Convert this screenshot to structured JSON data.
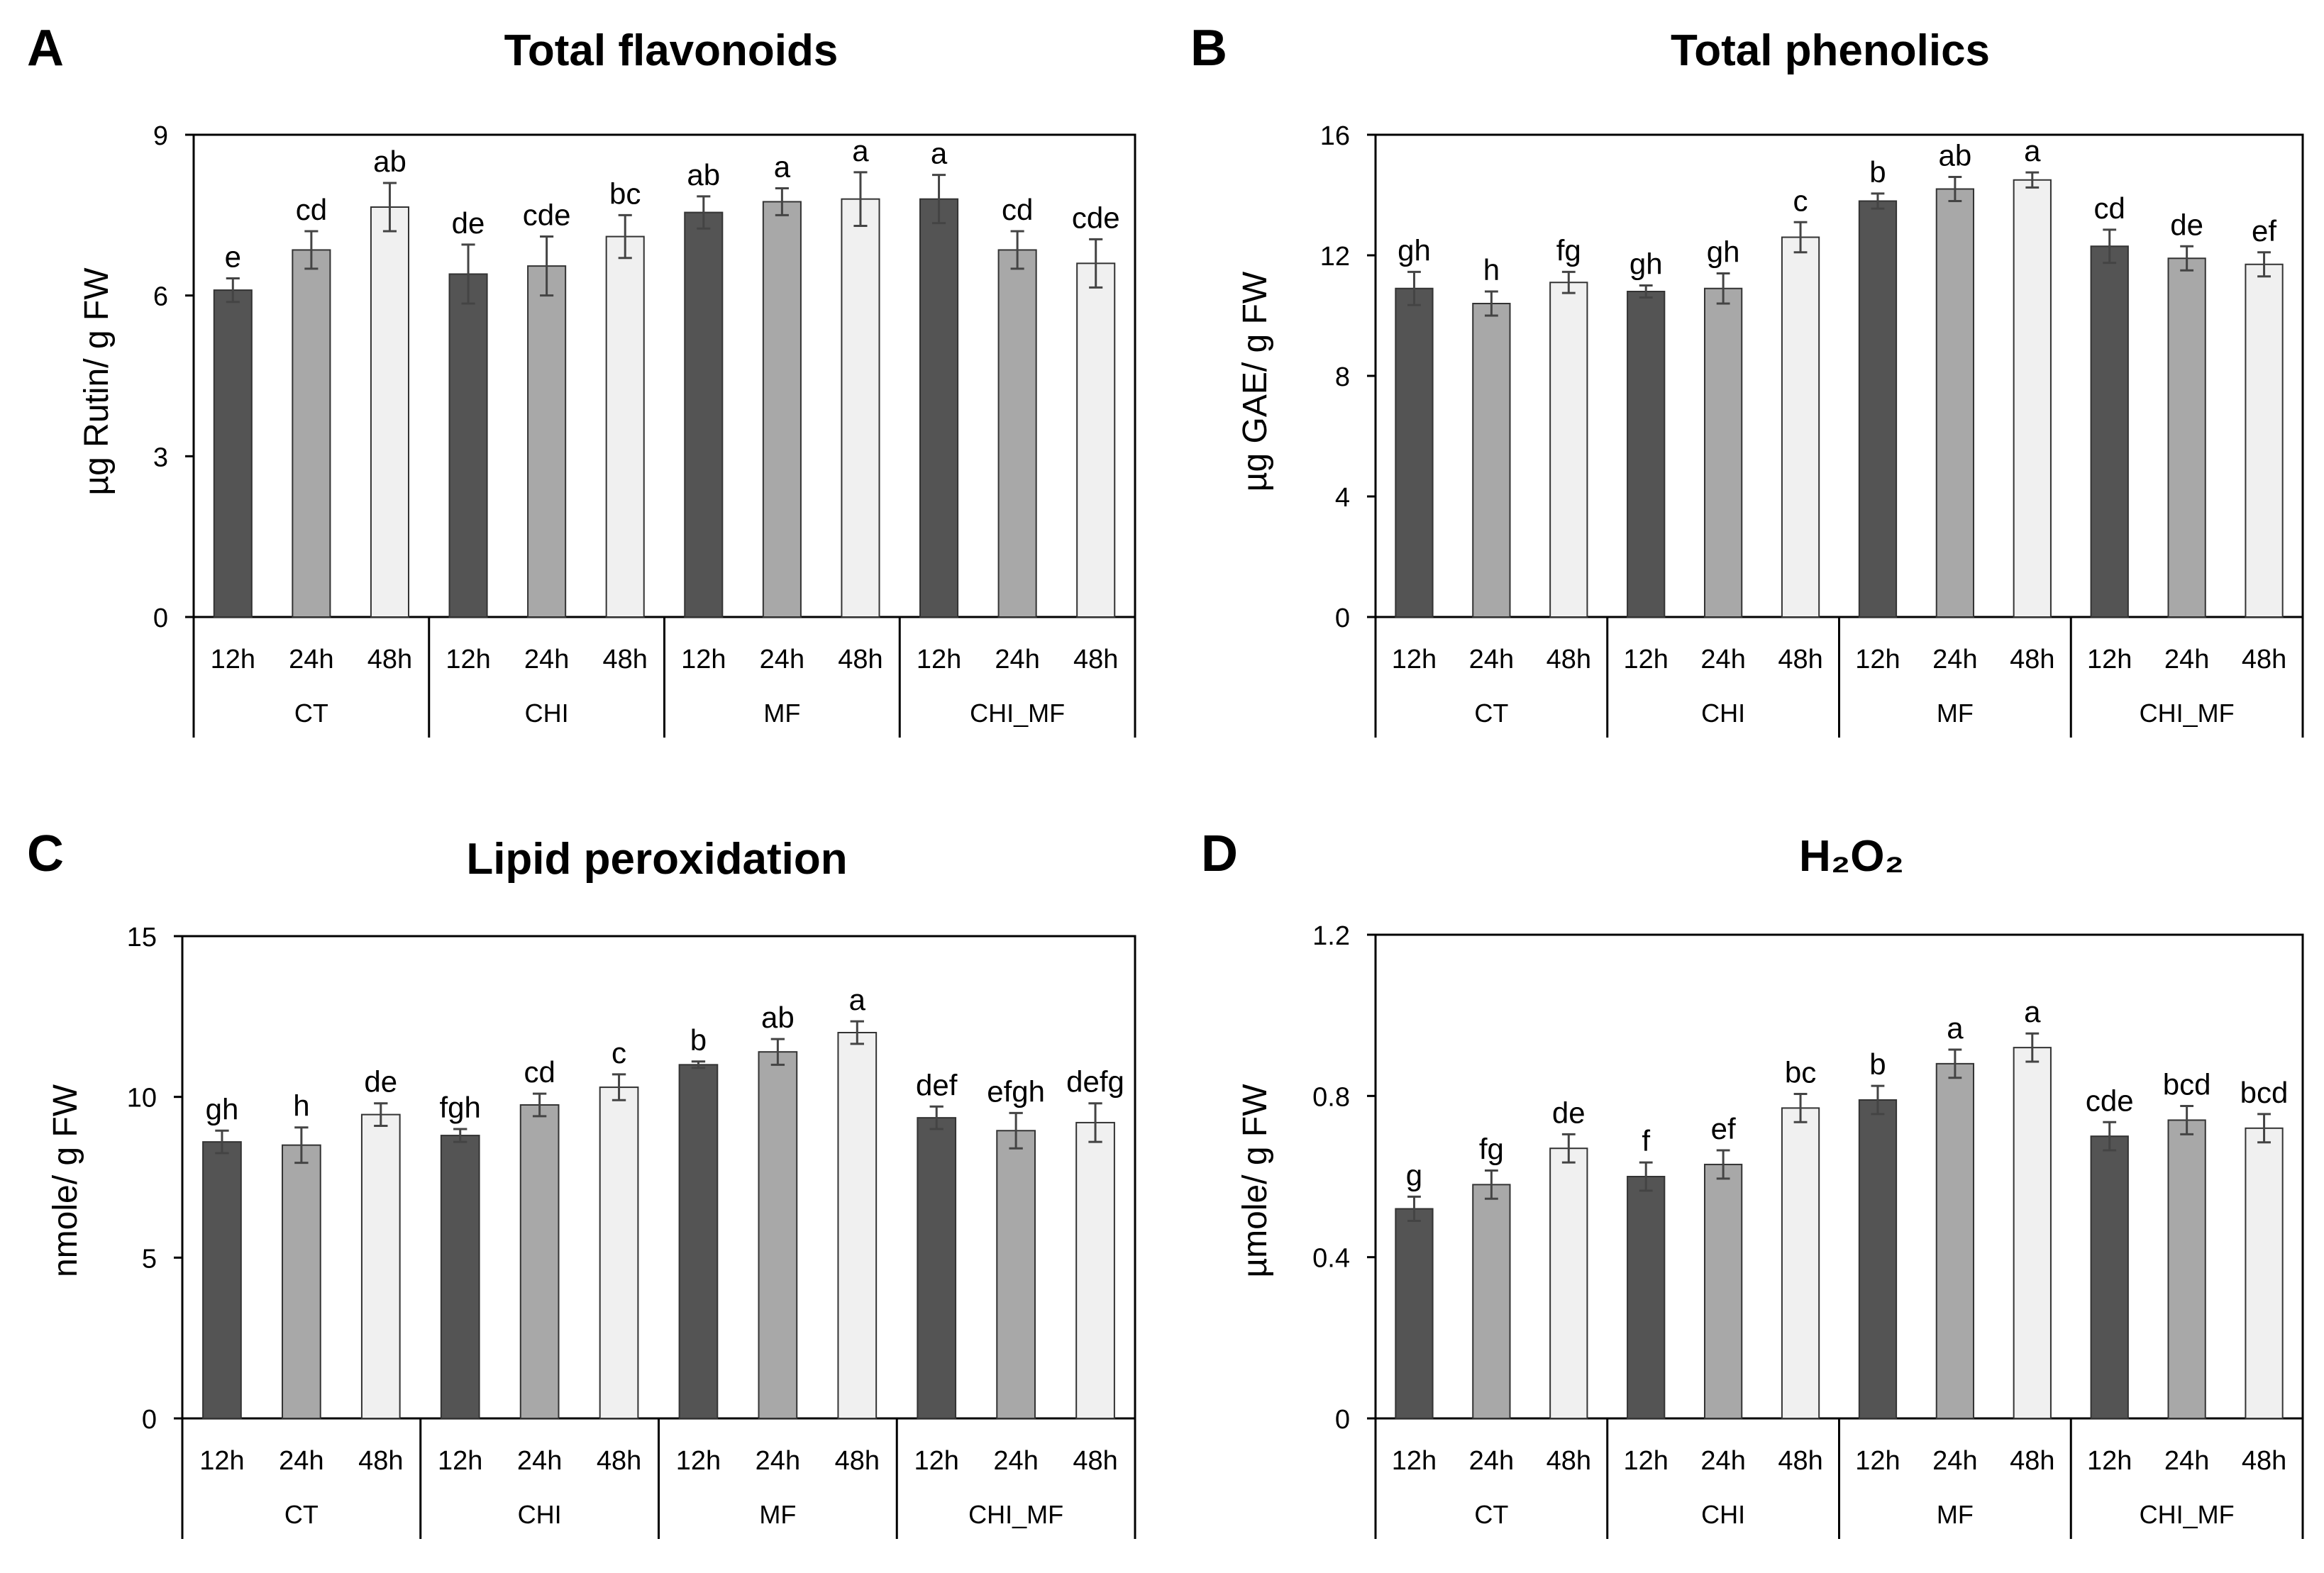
{
  "figure": {
    "time_labels": [
      "12h",
      "24h",
      "48h"
    ],
    "group_labels": [
      "CT",
      "CHI",
      "MF",
      "CHI_MF"
    ],
    "bar_colors": [
      "#545454",
      "#a8a8a8",
      "#f0f0f0"
    ],
    "bar_stroke": "#333333"
  },
  "chart_data": [
    {
      "panel": "A",
      "type": "bar",
      "title": "Total flavonoids",
      "ylabel": "µg Rutin/ g FW",
      "ylim": [
        0,
        9
      ],
      "yticks": [
        "0",
        "3",
        "6",
        "9"
      ],
      "categories": [
        "CT 12h",
        "CT 24h",
        "CT 48h",
        "CHI 12h",
        "CHI 24h",
        "CHI 48h",
        "MF 12h",
        "MF 24h",
        "MF 48h",
        "CHI_MF 12h",
        "CHI_MF 24h",
        "CHI_MF 48h"
      ],
      "values": [
        6.1,
        6.85,
        7.65,
        6.4,
        6.55,
        7.1,
        7.55,
        7.75,
        7.8,
        7.8,
        6.85,
        6.6
      ],
      "errors": [
        0.22,
        0.35,
        0.45,
        0.55,
        0.55,
        0.4,
        0.3,
        0.25,
        0.5,
        0.45,
        0.35,
        0.45
      ],
      "letters": [
        "e",
        "cd",
        "ab",
        "de",
        "cde",
        "bc",
        "ab",
        "a",
        "a",
        "a",
        "cd",
        "cde"
      ]
    },
    {
      "panel": "B",
      "type": "bar",
      "title": "Total phenolics",
      "ylabel": "µg GAE/ g FW",
      "ylim": [
        0,
        16
      ],
      "yticks": [
        "0",
        "4",
        "8",
        "12",
        "16"
      ],
      "categories": [
        "CT 12h",
        "CT 24h",
        "CT 48h",
        "CHI 12h",
        "CHI 24h",
        "CHI 48h",
        "MF 12h",
        "MF 24h",
        "MF 48h",
        "CHI_MF 12h",
        "CHI_MF 24h",
        "CHI_MF 48h"
      ],
      "values": [
        10.9,
        10.4,
        11.1,
        10.8,
        10.9,
        12.6,
        13.8,
        14.2,
        14.5,
        12.3,
        11.9,
        11.7
      ],
      "errors": [
        0.55,
        0.4,
        0.35,
        0.2,
        0.5,
        0.5,
        0.25,
        0.4,
        0.25,
        0.55,
        0.4,
        0.4
      ],
      "letters": [
        "gh",
        "h",
        "fg",
        "gh",
        "gh",
        "c",
        "b",
        "ab",
        "a",
        "cd",
        "de",
        "ef"
      ]
    },
    {
      "panel": "C",
      "type": "bar",
      "title": "Lipid peroxidation",
      "ylabel": "nmole/ g FW",
      "ylim": [
        0,
        15
      ],
      "yticks": [
        "0",
        "5",
        "10",
        "15"
      ],
      "categories": [
        "CT 12h",
        "CT 24h",
        "CT 48h",
        "CHI 12h",
        "CHI 24h",
        "CHI 48h",
        "MF 12h",
        "MF 24h",
        "MF 48h",
        "CHI_MF 12h",
        "CHI_MF 24h",
        "CHI_MF 48h"
      ],
      "values": [
        8.6,
        8.5,
        9.45,
        8.8,
        9.75,
        10.3,
        11.0,
        11.4,
        12.0,
        9.35,
        8.95,
        9.2
      ],
      "errors": [
        0.35,
        0.55,
        0.35,
        0.2,
        0.35,
        0.4,
        0.1,
        0.4,
        0.35,
        0.35,
        0.55,
        0.6
      ],
      "letters": [
        "gh",
        "h",
        "de",
        "fgh",
        "cd",
        "c",
        "b",
        "ab",
        "a",
        "def",
        "efgh",
        "defg"
      ]
    },
    {
      "panel": "D",
      "type": "bar",
      "title": "H₂O₂",
      "ylabel": "µmole/ g FW",
      "ylim": [
        0,
        1.2
      ],
      "yticks": [
        "0",
        "0.4",
        "0.8",
        "1.2"
      ],
      "categories": [
        "CT 12h",
        "CT 24h",
        "CT 48h",
        "CHI 12h",
        "CHI 24h",
        "CHI 48h",
        "MF 12h",
        "MF 24h",
        "MF 48h",
        "CHI_MF 12h",
        "CHI_MF 24h",
        "CHI_MF 48h"
      ],
      "values": [
        0.52,
        0.58,
        0.67,
        0.6,
        0.63,
        0.77,
        0.79,
        0.88,
        0.92,
        0.7,
        0.74,
        0.72
      ],
      "errors": [
        0.03,
        0.035,
        0.035,
        0.035,
        0.035,
        0.035,
        0.035,
        0.035,
        0.035,
        0.035,
        0.035,
        0.035
      ],
      "letters": [
        "g",
        "fg",
        "de",
        "f",
        "ef",
        "bc",
        "b",
        "a",
        "a",
        "cde",
        "bcd",
        "bcd"
      ]
    }
  ]
}
